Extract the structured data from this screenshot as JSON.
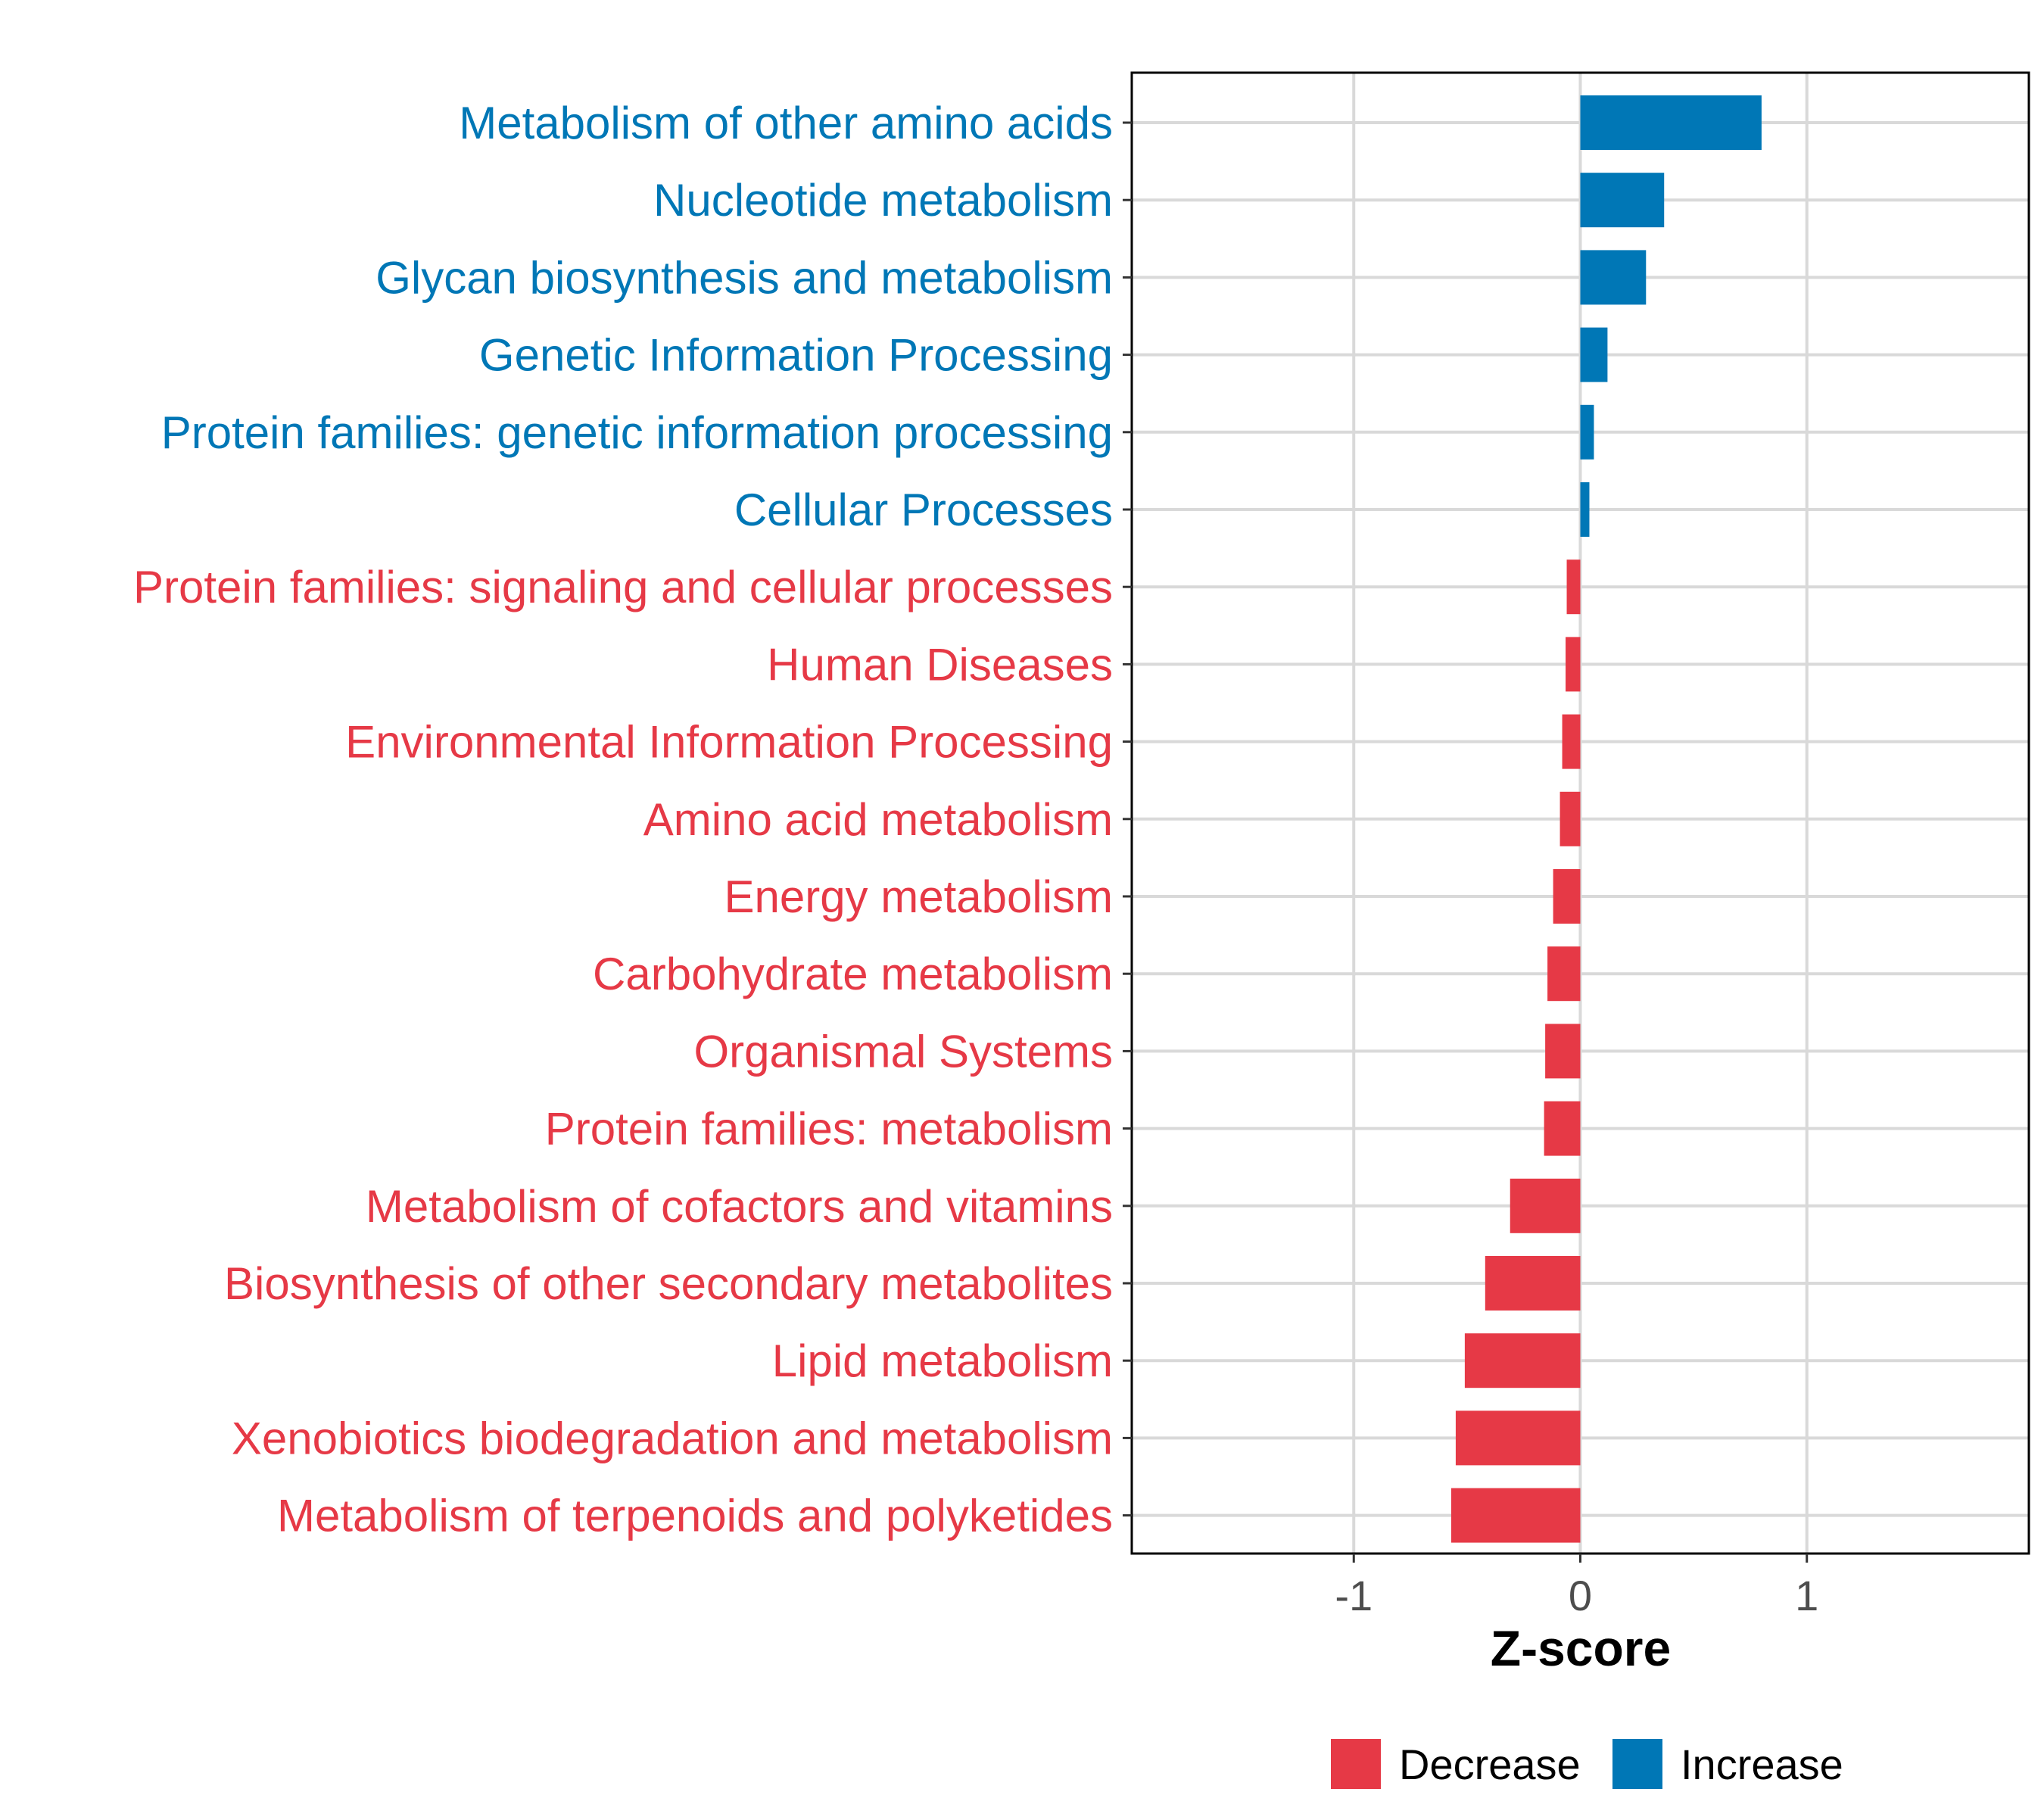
{
  "chart_data": {
    "type": "bar",
    "orientation": "horizontal",
    "xlabel": "Z-score",
    "ylabel": "",
    "xlim": [
      -1.98,
      1.98
    ],
    "x_ticks": [
      -1,
      0,
      1
    ],
    "x_tick_labels": [
      "-1",
      "0",
      "1"
    ],
    "grid": true,
    "categories": [
      "Metabolism of other amino acids",
      "Nucleotide metabolism",
      "Glycan biosynthesis and metabolism",
      "Genetic Information Processing",
      "Protein families: genetic information processing",
      "Cellular Processes",
      "Protein families: signaling and cellular processes",
      "Human Diseases",
      "Environmental Information Processing",
      "Amino acid metabolism",
      "Energy metabolism",
      "Carbohydrate metabolism",
      "Organismal Systems",
      "Protein families: metabolism",
      "Metabolism of cofactors and vitamins",
      "Biosynthesis of other secondary metabolites",
      "Lipid metabolism",
      "Xenobiotics biodegradation and metabolism",
      "Metabolism of terpenoids and polyketides"
    ],
    "values": [
      0.8,
      0.37,
      0.29,
      0.12,
      0.06,
      0.04,
      -0.06,
      -0.065,
      -0.08,
      -0.09,
      -0.12,
      -0.145,
      -0.155,
      -0.16,
      -0.31,
      -0.42,
      -0.51,
      -0.55,
      -0.57
    ],
    "groups": [
      "Increase",
      "Increase",
      "Increase",
      "Increase",
      "Increase",
      "Increase",
      "Decrease",
      "Decrease",
      "Decrease",
      "Decrease",
      "Decrease",
      "Decrease",
      "Decrease",
      "Decrease",
      "Decrease",
      "Decrease",
      "Decrease",
      "Decrease",
      "Decrease"
    ],
    "legend": {
      "position": "bottom",
      "entries": [
        {
          "label": "Decrease",
          "color": "#E63946"
        },
        {
          "label": "Increase",
          "color": "#0077B6"
        }
      ]
    },
    "colors": {
      "Decrease": "#E63946",
      "Increase": "#0077B6",
      "grid": "#d9d9d9",
      "panel_border": "#000000"
    }
  }
}
